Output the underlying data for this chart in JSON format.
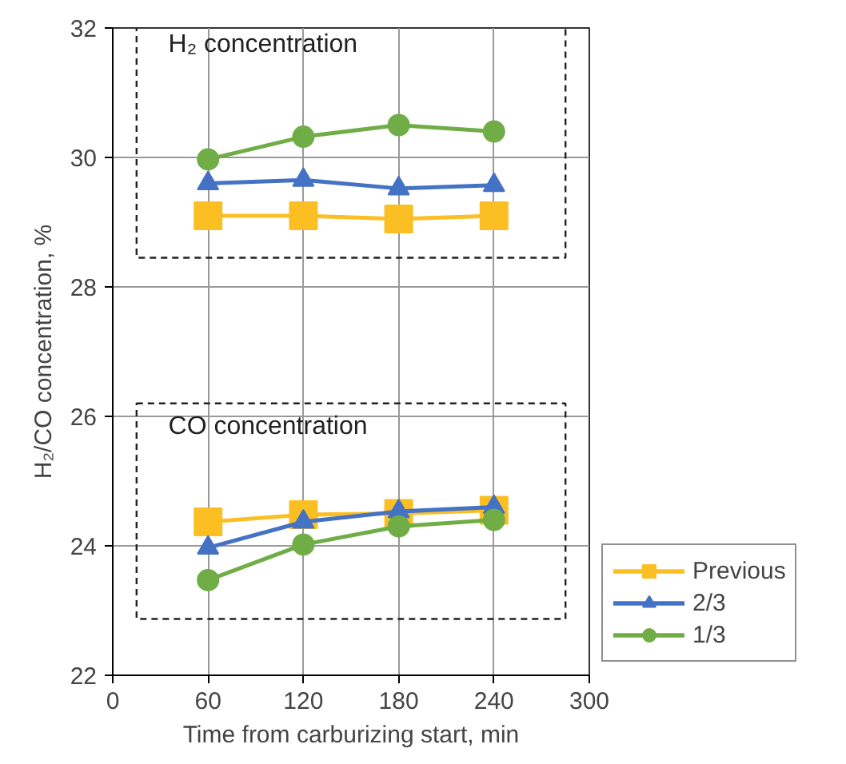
{
  "chart_data": {
    "type": "line",
    "xlabel": "Time from carburizing start, min",
    "ylabel": "H₂/CO concentration, %",
    "x": [
      60,
      120,
      180,
      240,
      60,
      120,
      180,
      240
    ],
    "series": [
      {
        "name": "Previous",
        "color": "#fbbf24",
        "marker": "square",
        "values": [
          29.1,
          29.1,
          29.05,
          29.1,
          24.37,
          24.48,
          24.5,
          24.55
        ]
      },
      {
        "name": "2/3",
        "color": "#4472c4",
        "marker": "triangle",
        "values": [
          29.6,
          29.65,
          29.52,
          29.57,
          23.97,
          24.37,
          24.53,
          24.6
        ]
      },
      {
        "name": "1/3",
        "color": "#70ad47",
        "marker": "circle",
        "values": [
          29.97,
          30.32,
          30.5,
          30.4,
          23.47,
          24.02,
          24.3,
          24.4
        ]
      }
    ],
    "xlim": [
      0,
      300
    ],
    "xticks": [
      0,
      60,
      120,
      180,
      240,
      300
    ],
    "ylim": [
      22,
      32
    ],
    "yticks": [
      22,
      24,
      26,
      28,
      30,
      32
    ],
    "grid": true,
    "legend": "bottom right",
    "line_style": "solid",
    "annotations": [
      "H₂ concentration",
      "CO concentration"
    ]
  }
}
